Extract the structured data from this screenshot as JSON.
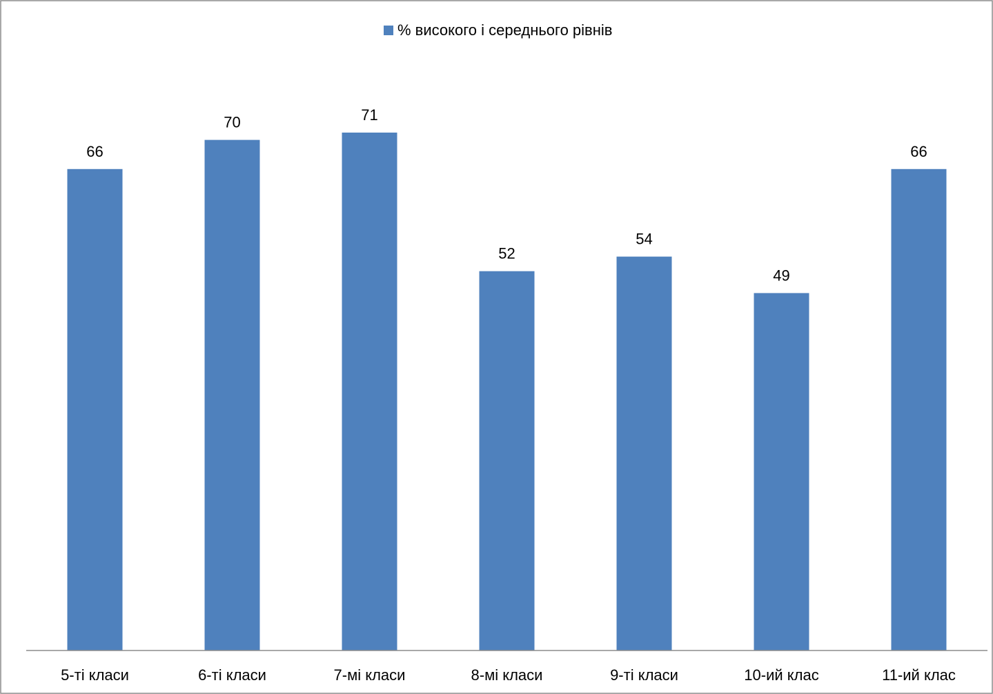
{
  "chart_data": {
    "type": "bar",
    "categories": [
      "5-ті класи",
      "6-ті класи",
      "7-мі класи",
      "8-мі класи",
      "9-ті класи",
      "10-ий клас",
      "11-ий клас"
    ],
    "series": [
      {
        "name": "% високого і середнього рівнів",
        "values": [
          66,
          70,
          71,
          52,
          54,
          49,
          66
        ],
        "color": "#4F81BD"
      }
    ],
    "ylim": [
      0,
      80
    ],
    "grid": false,
    "legend": "top-center",
    "data_labels": true
  }
}
